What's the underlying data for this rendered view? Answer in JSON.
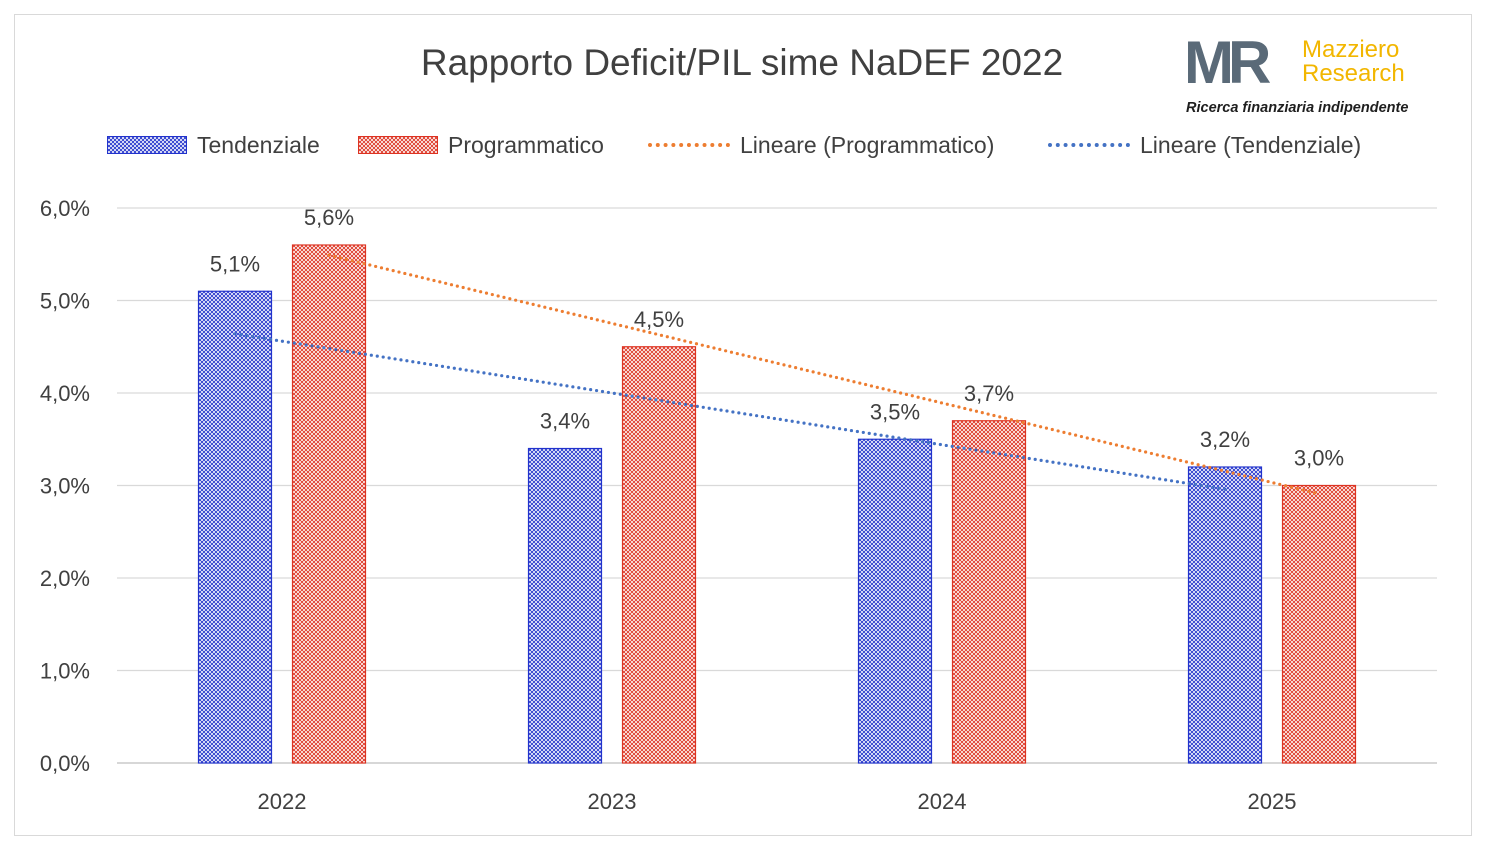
{
  "chart_data": {
    "type": "bar",
    "title": "Rapporto Deficit/PIL sime NaDEF 2022",
    "categories": [
      "2022",
      "2023",
      "2024",
      "2025"
    ],
    "series": [
      {
        "name": "Tendenziale",
        "values": [
          5.1,
          3.4,
          3.5,
          3.2
        ],
        "labels": [
          "5,1%",
          "3,4%",
          "3,5%",
          "3,2%"
        ],
        "color": "#2233cc"
      },
      {
        "name": "Programmatico",
        "values": [
          5.6,
          4.5,
          3.7,
          3.0
        ],
        "labels": [
          "5,6%",
          "4,5%",
          "3,7%",
          "3,0%"
        ],
        "color": "#dd3322"
      }
    ],
    "trendlines": [
      {
        "name": "Lineare (Programmatico)",
        "of": "Programmatico",
        "color": "#ed7d31"
      },
      {
        "name": "Lineare (Tendenziale)",
        "of": "Tendenziale",
        "color": "#4472c4"
      }
    ],
    "y_ticks": [
      "0,0%",
      "1,0%",
      "2,0%",
      "3,0%",
      "4,0%",
      "5,0%",
      "6,0%"
    ],
    "ylim": [
      0,
      6
    ],
    "grid": true,
    "legend_position": "top"
  },
  "logo": {
    "mark": "MR",
    "name_line1": "Mazziero",
    "name_line2": "Research",
    "tagline": "Ricerca finanziaria indipendente",
    "mark_color": "#5a6a78",
    "name_color": "#f2b600"
  }
}
